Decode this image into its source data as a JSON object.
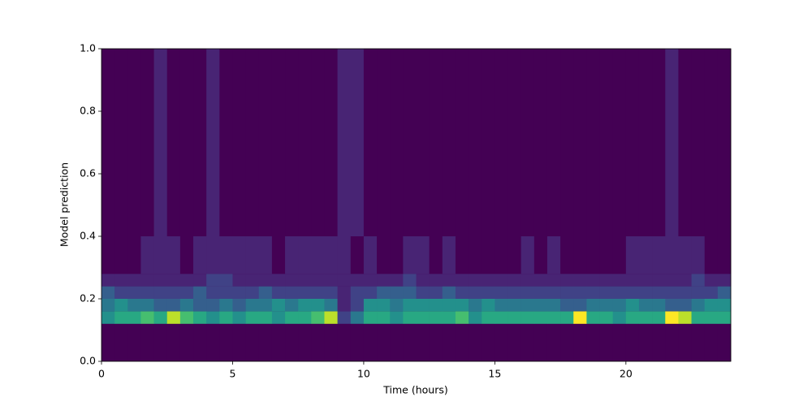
{
  "chart_data": {
    "type": "heatmap",
    "xlabel": "Time (hours)",
    "ylabel": "Model prediction",
    "xbins": [
      0,
      0.5,
      1,
      1.5,
      2,
      2.5,
      3,
      3.5,
      4,
      4.5,
      5,
      5.5,
      6,
      6.5,
      7,
      7.5,
      8,
      8.5,
      9,
      9.5,
      10,
      10.5,
      11,
      11.5,
      12,
      12.5,
      13,
      13.5,
      14,
      14.5,
      15,
      15.5,
      16,
      16.5,
      17,
      17.5,
      18,
      18.5,
      19,
      19.5,
      20,
      20.5,
      21,
      21.5,
      22,
      22.5,
      23,
      23.5,
      24
    ],
    "ybins": [
      0,
      0.12,
      0.16,
      0.2,
      0.24,
      0.28,
      0.4,
      1.0
    ],
    "z": [
      [
        0,
        0,
        0,
        0,
        0,
        0,
        0,
        0,
        0,
        0,
        0,
        0,
        0,
        0,
        0,
        0,
        0,
        0,
        0,
        0,
        0,
        0,
        0,
        0,
        0,
        0,
        0,
        0,
        0,
        0,
        0,
        0,
        0,
        0,
        0,
        0,
        0,
        0,
        0,
        0,
        0,
        0,
        0,
        0,
        0,
        0,
        0,
        0
      ],
      [
        5,
        6,
        6,
        7,
        6,
        9,
        7,
        6,
        5,
        6,
        5,
        6,
        6,
        5,
        6,
        6,
        7,
        9,
        2,
        4,
        6,
        6,
        5,
        6,
        6,
        6,
        6,
        7,
        5,
        6,
        6,
        6,
        6,
        6,
        6,
        6,
        10,
        6,
        6,
        5,
        6,
        6,
        6,
        10,
        9,
        6,
        6,
        6
      ],
      [
        4,
        5,
        4,
        4,
        3,
        3,
        4,
        3,
        3,
        4,
        3,
        4,
        4,
        5,
        4,
        5,
        5,
        4,
        1,
        2,
        5,
        5,
        4,
        5,
        5,
        5,
        5,
        5,
        4,
        5,
        4,
        4,
        4,
        4,
        4,
        3,
        3,
        4,
        4,
        4,
        5,
        4,
        4,
        3,
        3,
        4,
        5,
        5
      ],
      [
        3,
        2,
        2,
        2,
        2,
        2,
        2,
        3,
        2,
        2,
        2,
        2,
        3,
        2,
        2,
        2,
        2,
        2,
        1,
        2,
        2,
        3,
        3,
        3,
        2,
        2,
        3,
        2,
        2,
        2,
        2,
        2,
        2,
        2,
        2,
        2,
        2,
        2,
        2,
        2,
        2,
        2,
        2,
        2,
        2,
        2,
        2,
        3
      ],
      [
        1,
        1,
        1,
        1,
        1,
        1,
        1,
        1,
        2,
        2,
        1,
        1,
        1,
        1,
        1,
        1,
        1,
        1,
        1,
        1,
        1,
        1,
        1,
        2,
        1,
        1,
        1,
        1,
        1,
        1,
        1,
        1,
        1,
        1,
        1,
        1,
        1,
        1,
        1,
        1,
        1,
        1,
        1,
        1,
        1,
        2,
        1,
        1
      ],
      [
        0,
        0,
        0,
        1,
        1,
        1,
        0,
        1,
        1,
        1,
        1,
        1,
        1,
        0,
        1,
        1,
        1,
        1,
        1,
        0,
        1,
        0,
        0,
        1,
        1,
        0,
        1,
        0,
        0,
        0,
        0,
        0,
        1,
        0,
        1,
        0,
        0,
        0,
        0,
        0,
        1,
        1,
        1,
        1,
        1,
        1,
        0,
        0
      ],
      [
        0,
        0,
        0,
        0,
        1,
        0,
        0,
        0,
        1,
        0,
        0,
        0,
        0,
        0,
        0,
        0,
        0,
        0,
        1,
        1,
        0,
        0,
        0,
        0,
        0,
        0,
        0,
        0,
        0,
        0,
        0,
        0,
        0,
        0,
        0,
        0,
        0,
        0,
        0,
        0,
        0,
        0,
        0,
        1,
        0,
        0,
        0,
        0
      ]
    ],
    "zlim": [
      0,
      10
    ],
    "colormap": [
      "#440154",
      "#482878",
      "#3e4989",
      "#31688e",
      "#26828e",
      "#1f9e89",
      "#35b779",
      "#6ece58",
      "#b5de2b",
      "#fde725"
    ],
    "xlim": [
      0,
      24
    ],
    "ylim": [
      0,
      1
    ],
    "xticks": [
      0,
      5,
      10,
      15,
      20
    ],
    "yticks": [
      {
        "value": 0,
        "label": "0.0"
      },
      {
        "value": 0.2,
        "label": "0.2"
      },
      {
        "value": 0.4,
        "label": "0.4"
      },
      {
        "value": 0.6,
        "label": "0.6"
      },
      {
        "value": 0.8,
        "label": "0.8"
      },
      {
        "value": 1,
        "label": "1.0"
      }
    ]
  }
}
